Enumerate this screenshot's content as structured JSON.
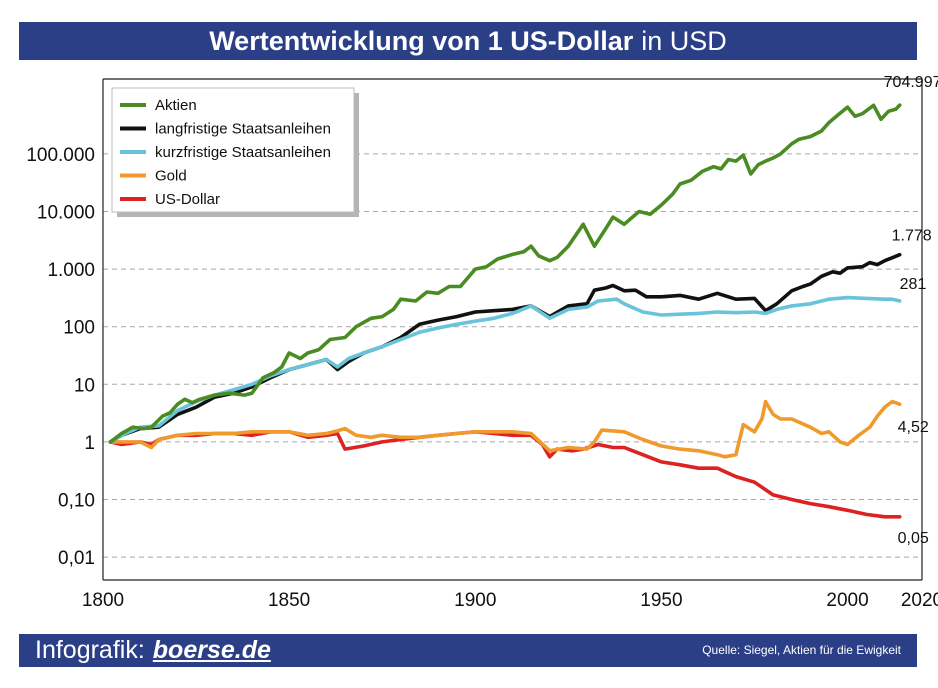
{
  "title": {
    "bold": "Wertentwicklung von 1 US-Dollar",
    "normal": "in USD"
  },
  "footer": {
    "brand_prefix": "Infografik:",
    "brand_site": "boerse.de",
    "source": "Quelle: Siegel, Aktien für die Ewigkeit"
  },
  "chart_data": {
    "type": "line",
    "log_y": true,
    "xlim": [
      1800,
      2020
    ],
    "ylim": [
      0.004,
      2000000
    ],
    "x_ticks": [
      1800,
      1850,
      1900,
      1950,
      2000,
      2020
    ],
    "x_tick_labels": [
      "1800",
      "1850",
      "1900",
      "1950",
      "2000",
      "2020"
    ],
    "y_ticks": [
      0.01,
      0.1,
      1,
      10,
      100,
      1000,
      10000,
      100000
    ],
    "y_tick_labels": [
      "0,01",
      "0,10",
      "1",
      "10",
      "100",
      "1.000",
      "10.000",
      "100.000"
    ],
    "grid": "horizontal dashed",
    "legend_position": "top-left",
    "series": [
      {
        "name": "Aktien",
        "color": "#4a8c22",
        "end_label": "704.997",
        "points": [
          [
            1802,
            1
          ],
          [
            1805,
            1.4
          ],
          [
            1808,
            1.8
          ],
          [
            1811,
            1.7
          ],
          [
            1813,
            1.8
          ],
          [
            1816,
            2.8
          ],
          [
            1818,
            3.2
          ],
          [
            1820,
            4.5
          ],
          [
            1822,
            5.5
          ],
          [
            1824,
            4.8
          ],
          [
            1826,
            5.5
          ],
          [
            1830,
            6.5
          ],
          [
            1834,
            7
          ],
          [
            1838,
            6.5
          ],
          [
            1840,
            7
          ],
          [
            1843,
            13
          ],
          [
            1846,
            16
          ],
          [
            1848,
            20
          ],
          [
            1850,
            35
          ],
          [
            1853,
            28
          ],
          [
            1855,
            35
          ],
          [
            1858,
            40
          ],
          [
            1861,
            60
          ],
          [
            1865,
            65
          ],
          [
            1868,
            100
          ],
          [
            1872,
            140
          ],
          [
            1875,
            150
          ],
          [
            1878,
            200
          ],
          [
            1880,
            300
          ],
          [
            1884,
            280
          ],
          [
            1887,
            400
          ],
          [
            1890,
            380
          ],
          [
            1893,
            500
          ],
          [
            1896,
            500
          ],
          [
            1900,
            1000
          ],
          [
            1903,
            1100
          ],
          [
            1906,
            1500
          ],
          [
            1910,
            1800
          ],
          [
            1913,
            2000
          ],
          [
            1915,
            2500
          ],
          [
            1917,
            1700
          ],
          [
            1920,
            1400
          ],
          [
            1922,
            1600
          ],
          [
            1925,
            2500
          ],
          [
            1929,
            6000
          ],
          [
            1932,
            2500
          ],
          [
            1935,
            5000
          ],
          [
            1937,
            8000
          ],
          [
            1940,
            6000
          ],
          [
            1944,
            10000
          ],
          [
            1947,
            9000
          ],
          [
            1950,
            13000
          ],
          [
            1953,
            20000
          ],
          [
            1955,
            30000
          ],
          [
            1958,
            35000
          ],
          [
            1961,
            50000
          ],
          [
            1964,
            60000
          ],
          [
            1966,
            55000
          ],
          [
            1968,
            80000
          ],
          [
            1970,
            75000
          ],
          [
            1972,
            95000
          ],
          [
            1974,
            45000
          ],
          [
            1976,
            65000
          ],
          [
            1978,
            75000
          ],
          [
            1980,
            85000
          ],
          [
            1982,
            100000
          ],
          [
            1985,
            150000
          ],
          [
            1987,
            180000
          ],
          [
            1990,
            200000
          ],
          [
            1993,
            250000
          ],
          [
            1995,
            350000
          ],
          [
            1997,
            450000
          ],
          [
            2000,
            650000
          ],
          [
            2002,
            450000
          ],
          [
            2004,
            500000
          ],
          [
            2007,
            700000
          ],
          [
            2009,
            400000
          ],
          [
            2011,
            550000
          ],
          [
            2013,
            600000
          ],
          [
            2014,
            704997
          ]
        ]
      },
      {
        "name": "langfristige Staatsanleihen",
        "color": "#111111",
        "end_label": "1.778",
        "points": [
          [
            1802,
            1
          ],
          [
            1805,
            1.3
          ],
          [
            1810,
            1.7
          ],
          [
            1815,
            1.8
          ],
          [
            1820,
            3
          ],
          [
            1825,
            4
          ],
          [
            1830,
            6
          ],
          [
            1835,
            7
          ],
          [
            1840,
            9
          ],
          [
            1845,
            13
          ],
          [
            1850,
            18
          ],
          [
            1855,
            22
          ],
          [
            1860,
            27
          ],
          [
            1863,
            18
          ],
          [
            1866,
            25
          ],
          [
            1870,
            35
          ],
          [
            1875,
            45
          ],
          [
            1880,
            65
          ],
          [
            1885,
            110
          ],
          [
            1890,
            130
          ],
          [
            1895,
            150
          ],
          [
            1900,
            180
          ],
          [
            1905,
            190
          ],
          [
            1910,
            200
          ],
          [
            1915,
            230
          ],
          [
            1920,
            150
          ],
          [
            1925,
            230
          ],
          [
            1930,
            250
          ],
          [
            1932,
            430
          ],
          [
            1935,
            470
          ],
          [
            1937,
            520
          ],
          [
            1940,
            420
          ],
          [
            1943,
            430
          ],
          [
            1946,
            330
          ],
          [
            1950,
            330
          ],
          [
            1955,
            350
          ],
          [
            1960,
            300
          ],
          [
            1965,
            380
          ],
          [
            1970,
            300
          ],
          [
            1975,
            310
          ],
          [
            1978,
            190
          ],
          [
            1981,
            250
          ],
          [
            1985,
            420
          ],
          [
            1988,
            500
          ],
          [
            1990,
            550
          ],
          [
            1993,
            750
          ],
          [
            1996,
            900
          ],
          [
            1998,
            850
          ],
          [
            2000,
            1050
          ],
          [
            2004,
            1100
          ],
          [
            2006,
            1300
          ],
          [
            2008,
            1200
          ],
          [
            2010,
            1400
          ],
          [
            2014,
            1778
          ]
        ]
      },
      {
        "name": "kurzfristige Staatsanleihen",
        "color": "#68c3db",
        "end_label": "281",
        "points": [
          [
            1802,
            1
          ],
          [
            1806,
            1.4
          ],
          [
            1810,
            1.8
          ],
          [
            1815,
            1.9
          ],
          [
            1820,
            3.5
          ],
          [
            1825,
            5
          ],
          [
            1830,
            6.5
          ],
          [
            1835,
            8
          ],
          [
            1840,
            10
          ],
          [
            1845,
            14
          ],
          [
            1850,
            18
          ],
          [
            1855,
            22
          ],
          [
            1860,
            27
          ],
          [
            1863,
            20
          ],
          [
            1866,
            28
          ],
          [
            1870,
            35
          ],
          [
            1875,
            45
          ],
          [
            1880,
            60
          ],
          [
            1885,
            80
          ],
          [
            1890,
            95
          ],
          [
            1895,
            110
          ],
          [
            1900,
            125
          ],
          [
            1905,
            140
          ],
          [
            1910,
            170
          ],
          [
            1915,
            230
          ],
          [
            1920,
            140
          ],
          [
            1925,
            200
          ],
          [
            1930,
            220
          ],
          [
            1933,
            280
          ],
          [
            1938,
            300
          ],
          [
            1940,
            250
          ],
          [
            1945,
            180
          ],
          [
            1950,
            160
          ],
          [
            1955,
            165
          ],
          [
            1960,
            170
          ],
          [
            1965,
            180
          ],
          [
            1970,
            175
          ],
          [
            1975,
            180
          ],
          [
            1978,
            170
          ],
          [
            1981,
            200
          ],
          [
            1985,
            230
          ],
          [
            1990,
            250
          ],
          [
            1995,
            300
          ],
          [
            2000,
            320
          ],
          [
            2005,
            310
          ],
          [
            2010,
            300
          ],
          [
            2012,
            300
          ],
          [
            2014,
            281
          ]
        ]
      },
      {
        "name": "Gold",
        "color": "#f09a2e",
        "end_label": "4,52",
        "points": [
          [
            1802,
            1
          ],
          [
            1805,
            1
          ],
          [
            1810,
            1
          ],
          [
            1813,
            0.8
          ],
          [
            1815,
            1.1
          ],
          [
            1820,
            1.3
          ],
          [
            1825,
            1.4
          ],
          [
            1830,
            1.4
          ],
          [
            1835,
            1.4
          ],
          [
            1840,
            1.5
          ],
          [
            1845,
            1.5
          ],
          [
            1850,
            1.5
          ],
          [
            1855,
            1.3
          ],
          [
            1860,
            1.4
          ],
          [
            1862,
            1.5
          ],
          [
            1865,
            1.7
          ],
          [
            1868,
            1.3
          ],
          [
            1872,
            1.2
          ],
          [
            1875,
            1.3
          ],
          [
            1880,
            1.2
          ],
          [
            1885,
            1.2
          ],
          [
            1890,
            1.3
          ],
          [
            1895,
            1.4
          ],
          [
            1900,
            1.5
          ],
          [
            1905,
            1.5
          ],
          [
            1910,
            1.5
          ],
          [
            1915,
            1.4
          ],
          [
            1920,
            0.7
          ],
          [
            1925,
            0.8
          ],
          [
            1930,
            0.75
          ],
          [
            1932,
            1
          ],
          [
            1934,
            1.6
          ],
          [
            1940,
            1.5
          ],
          [
            1945,
            1.1
          ],
          [
            1950,
            0.85
          ],
          [
            1955,
            0.75
          ],
          [
            1960,
            0.7
          ],
          [
            1965,
            0.6
          ],
          [
            1967,
            0.55
          ],
          [
            1970,
            0.6
          ],
          [
            1972,
            2
          ],
          [
            1975,
            1.5
          ],
          [
            1977,
            2.5
          ],
          [
            1978,
            5
          ],
          [
            1980,
            3
          ],
          [
            1982,
            2.5
          ],
          [
            1985,
            2.5
          ],
          [
            1990,
            1.8
          ],
          [
            1993,
            1.4
          ],
          [
            1995,
            1.5
          ],
          [
            1998,
            1.0
          ],
          [
            2000,
            0.9
          ],
          [
            2003,
            1.3
          ],
          [
            2006,
            1.8
          ],
          [
            2008,
            2.8
          ],
          [
            2010,
            4
          ],
          [
            2012,
            5
          ],
          [
            2014,
            4.52
          ]
        ]
      },
      {
        "name": "US-Dollar",
        "color": "#dc2222",
        "end_label": "0,05",
        "points": [
          [
            1802,
            1
          ],
          [
            1805,
            0.9
          ],
          [
            1810,
            1
          ],
          [
            1813,
            0.9
          ],
          [
            1815,
            1.1
          ],
          [
            1820,
            1.3
          ],
          [
            1825,
            1.3
          ],
          [
            1830,
            1.4
          ],
          [
            1835,
            1.4
          ],
          [
            1840,
            1.3
          ],
          [
            1845,
            1.5
          ],
          [
            1850,
            1.5
          ],
          [
            1855,
            1.2
          ],
          [
            1860,
            1.3
          ],
          [
            1863,
            1.4
          ],
          [
            1865,
            0.75
          ],
          [
            1870,
            0.85
          ],
          [
            1875,
            1
          ],
          [
            1880,
            1.1
          ],
          [
            1885,
            1.2
          ],
          [
            1890,
            1.3
          ],
          [
            1895,
            1.4
          ],
          [
            1900,
            1.5
          ],
          [
            1905,
            1.4
          ],
          [
            1910,
            1.3
          ],
          [
            1915,
            1.3
          ],
          [
            1918,
            0.9
          ],
          [
            1920,
            0.55
          ],
          [
            1922,
            0.75
          ],
          [
            1926,
            0.7
          ],
          [
            1929,
            0.75
          ],
          [
            1933,
            0.9
          ],
          [
            1937,
            0.8
          ],
          [
            1940,
            0.8
          ],
          [
            1945,
            0.6
          ],
          [
            1950,
            0.45
          ],
          [
            1955,
            0.4
          ],
          [
            1960,
            0.35
          ],
          [
            1965,
            0.35
          ],
          [
            1970,
            0.25
          ],
          [
            1975,
            0.2
          ],
          [
            1980,
            0.12
          ],
          [
            1985,
            0.1
          ],
          [
            1990,
            0.085
          ],
          [
            1995,
            0.075
          ],
          [
            2000,
            0.065
          ],
          [
            2005,
            0.055
          ],
          [
            2010,
            0.05
          ],
          [
            2014,
            0.05
          ]
        ]
      }
    ]
  }
}
